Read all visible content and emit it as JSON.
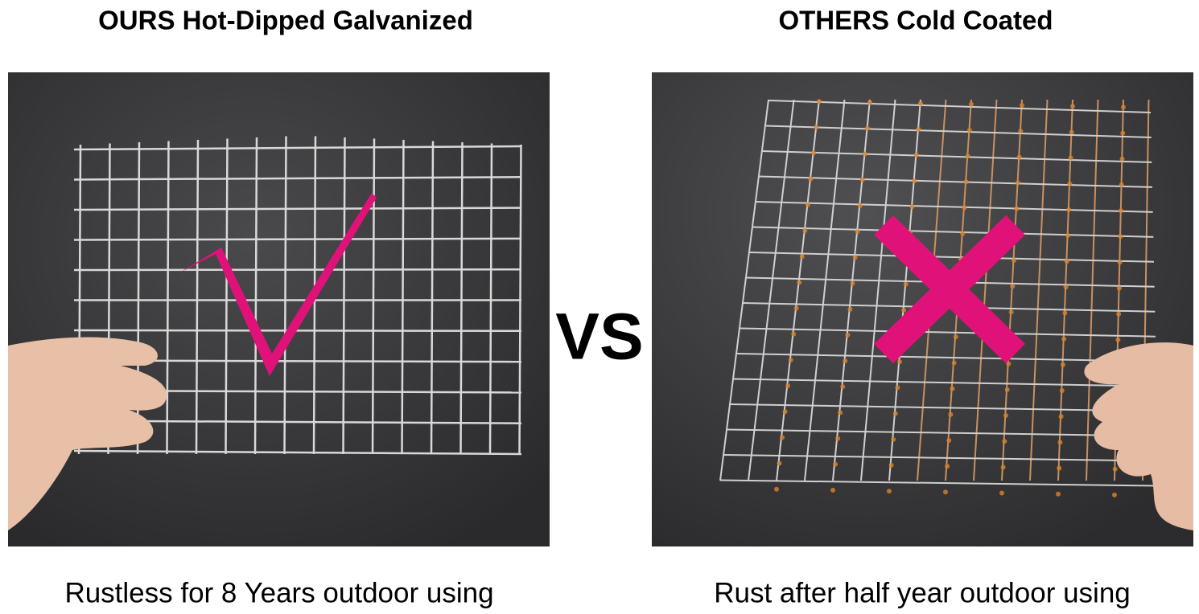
{
  "left": {
    "title": "OURS Hot-Dipped Galvanized",
    "caption": "Rustless for 8 Years outdoor using"
  },
  "vs": "VS",
  "right": {
    "title": "OTHERS Cold Coated",
    "caption": "Rust after half year outdoor using"
  }
}
